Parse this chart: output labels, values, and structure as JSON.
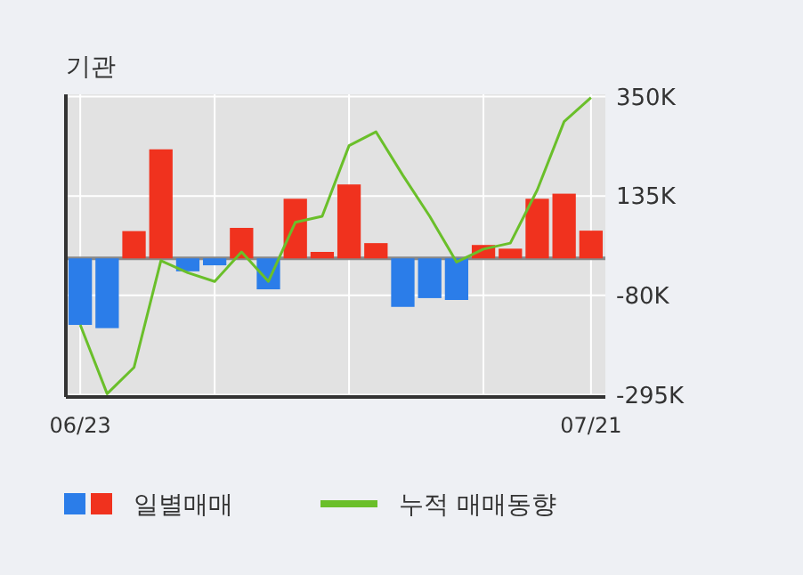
{
  "chart_data": {
    "type": "bar",
    "title": "기관",
    "categories": [
      "06/23",
      null,
      null,
      null,
      null,
      null,
      null,
      null,
      null,
      null,
      null,
      null,
      null,
      null,
      null,
      null,
      null,
      null,
      null,
      "07/21"
    ],
    "series": [
      {
        "name": "일별매매",
        "colors": [
          "#2b7de9",
          "#2b7de9",
          "#f0321e",
          "#f0321e",
          "#2b7de9",
          "#2b7de9",
          "#f0321e",
          "#2b7de9",
          "#f0321e",
          "#f0321e",
          "#f0321e",
          "#f0321e",
          "#2b7de9",
          "#2b7de9",
          "#2b7de9",
          "#f0321e",
          "#f0321e",
          "#f0321e",
          "#f0321e",
          "#f0321e"
        ],
        "values": [
          -144000,
          -151000,
          59000,
          236000,
          -28000,
          -15000,
          66000,
          -67000,
          129000,
          14000,
          160000,
          33000,
          -105000,
          -86000,
          -90000,
          29000,
          21000,
          129000,
          140000,
          60000
        ]
      },
      {
        "name": "누적 매매동향",
        "type": "line",
        "color": "#6abf2a",
        "values": [
          -144000,
          -293000,
          -236000,
          -5000,
          -31000,
          -50000,
          14000,
          -50000,
          78000,
          91000,
          244000,
          274000,
          180000,
          91000,
          -8000,
          20000,
          33000,
          148000,
          296000,
          348000
        ]
      }
    ],
    "ylim": [
      -300000,
      355000
    ],
    "yticks": [
      {
        "value": 350000,
        "label": "350K"
      },
      {
        "value": 135000,
        "label": "135K"
      },
      {
        "value": -80000,
        "label": "-80K"
      },
      {
        "value": -295000,
        "label": "-295K"
      }
    ],
    "grid": true,
    "legend": "bottom"
  }
}
